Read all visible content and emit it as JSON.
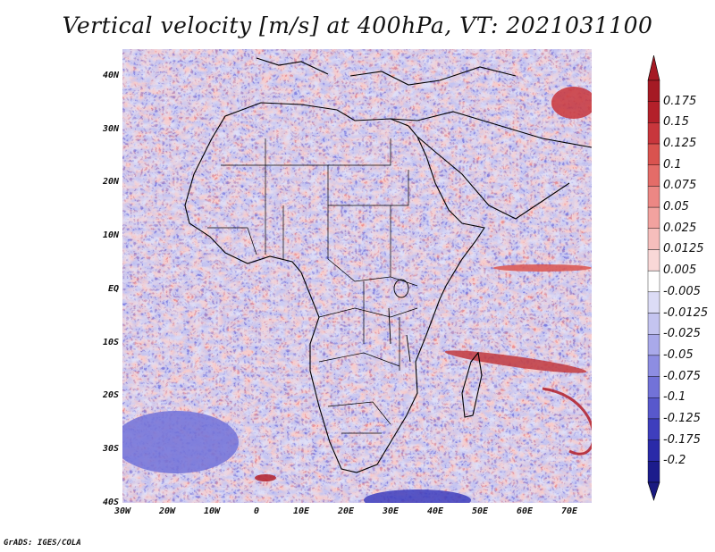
{
  "title": "Vertical velocity [m/s] at 400hPa, VT: 2021031100",
  "credit": "GrADS: IGES/COLA",
  "map": {
    "region": "Africa",
    "lon_range": [
      -30,
      75
    ],
    "lat_range": [
      -40,
      45
    ]
  },
  "axes": {
    "lat_ticks": [
      "40N",
      "30N",
      "20N",
      "10N",
      "EQ",
      "10S",
      "20S",
      "30S",
      "40S"
    ],
    "lon_ticks": [
      "30W",
      "20W",
      "10W",
      "0",
      "10E",
      "20E",
      "30E",
      "40E",
      "50E",
      "60E",
      "70E"
    ]
  },
  "colorbar": {
    "labels": [
      "0.175",
      "0.15",
      "0.125",
      "0.1",
      "0.075",
      "0.05",
      "0.025",
      "0.0125",
      "0.005",
      "-0.005",
      "-0.0125",
      "-0.025",
      "-0.05",
      "-0.075",
      "-0.1",
      "-0.125",
      "-0.175",
      "-0.2"
    ],
    "colors": [
      "#b3202a",
      "#c8363c",
      "#d9534f",
      "#e46c68",
      "#ec8784",
      "#f2a29f",
      "#f6bebc",
      "#f9d8d7",
      "#ffffff",
      "#dcdcf6",
      "#c4c4f0",
      "#a9a9ea",
      "#8d8de2",
      "#7272d8",
      "#5858cc",
      "#3e3ebd",
      "#2a2aa8",
      "#1c1c8c"
    ],
    "top_color": "#a51a24",
    "bottom_color": "#1a1a80"
  }
}
